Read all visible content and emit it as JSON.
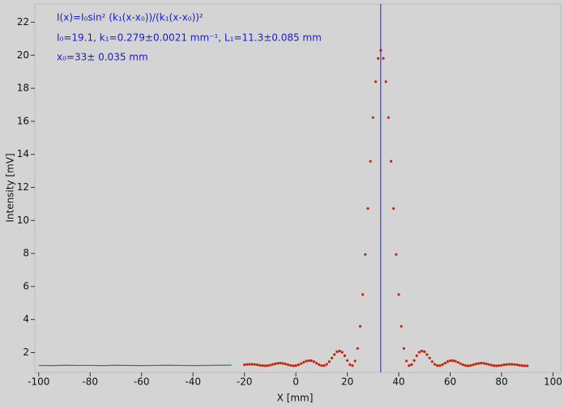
{
  "chart_data": {
    "type": "scatter",
    "x_label": "X [mm]",
    "y_label": "Intensity [mV]",
    "annotations": [
      "I(x)=I₀sin² (k₁(x-x₀))/(k₁(x-x₀))²",
      "I₀=19.1,  k₁=0.279±0.0021 mm⁻¹,   L₁=11.3±0.085 mm",
      "x₀=33±  0.035 mm"
    ],
    "marker_x": 33,
    "marker_color": "#1f1fcc",
    "xlim": [
      -101.5,
      103
    ],
    "ylim": [
      0.8,
      23.1
    ],
    "xticks": [
      -100,
      -80,
      -60,
      -40,
      -20,
      0,
      20,
      40,
      60,
      80,
      100
    ],
    "yticks": [
      2,
      4,
      6,
      8,
      10,
      12,
      14,
      16,
      18,
      20,
      22
    ],
    "series": [
      {
        "style": "line",
        "color": "#2a8a1e",
        "x": [
          -100,
          -95,
          -90,
          -85,
          -80,
          -75,
          -70,
          -65,
          -60,
          -55,
          -50,
          -45,
          -40,
          -35,
          -30,
          -25
        ],
        "values": [
          1.22,
          1.21,
          1.23,
          1.22,
          1.22,
          1.21,
          1.23,
          1.22,
          1.21,
          1.22,
          1.23,
          1.22,
          1.21,
          1.22,
          1.23,
          1.24
        ]
      },
      {
        "style": "points",
        "color": "#c4260c",
        "x": [
          -20,
          -19,
          -18,
          -17,
          -16,
          -15,
          -14,
          -13,
          -12,
          -11,
          -10,
          -9,
          -8,
          -7,
          -6,
          -5,
          -4,
          -3,
          -2,
          -1,
          0,
          1,
          2,
          3,
          4,
          5,
          6,
          7,
          8,
          9,
          10,
          11,
          12,
          13,
          14,
          15,
          16,
          17,
          18,
          19,
          20,
          21,
          22,
          23,
          24,
          25,
          26,
          27,
          28,
          29,
          30,
          31,
          32,
          33,
          34,
          35,
          36,
          37,
          38,
          39,
          40,
          41,
          42,
          43,
          44,
          45,
          46,
          47,
          48,
          49,
          50,
          51,
          52,
          53,
          54,
          55,
          56,
          57,
          58,
          59,
          60,
          61,
          62,
          63,
          64,
          65,
          66,
          67,
          68,
          69,
          70,
          71,
          72,
          73,
          74,
          75,
          76,
          77,
          78,
          79,
          80,
          81,
          82,
          83,
          84,
          85,
          86,
          87,
          88,
          89,
          90
        ],
        "values": [
          1.26,
          1.28,
          1.29,
          1.29,
          1.28,
          1.26,
          1.23,
          1.21,
          1.2,
          1.21,
          1.24,
          1.28,
          1.32,
          1.35,
          1.36,
          1.34,
          1.31,
          1.26,
          1.22,
          1.2,
          1.21,
          1.26,
          1.33,
          1.41,
          1.48,
          1.51,
          1.51,
          1.45,
          1.36,
          1.27,
          1.21,
          1.21,
          1.29,
          1.45,
          1.67,
          1.88,
          2.05,
          2.1,
          2.02,
          1.81,
          1.52,
          1.27,
          1.21,
          1.49,
          2.25,
          3.59,
          5.51,
          7.94,
          10.72,
          13.58,
          16.23,
          18.4,
          19.81,
          20.3,
          19.81,
          18.4,
          16.23,
          13.58,
          10.72,
          7.94,
          5.51,
          3.59,
          2.25,
          1.49,
          1.21,
          1.27,
          1.52,
          1.81,
          2.02,
          2.1,
          2.05,
          1.88,
          1.67,
          1.45,
          1.29,
          1.21,
          1.21,
          1.27,
          1.36,
          1.45,
          1.51,
          1.51,
          1.48,
          1.41,
          1.33,
          1.26,
          1.21,
          1.2,
          1.22,
          1.26,
          1.31,
          1.34,
          1.36,
          1.35,
          1.32,
          1.28,
          1.24,
          1.21,
          1.2,
          1.21,
          1.23,
          1.26,
          1.28,
          1.29,
          1.29,
          1.28,
          1.26,
          1.23,
          1.21,
          1.2,
          1.2
        ]
      }
    ]
  }
}
